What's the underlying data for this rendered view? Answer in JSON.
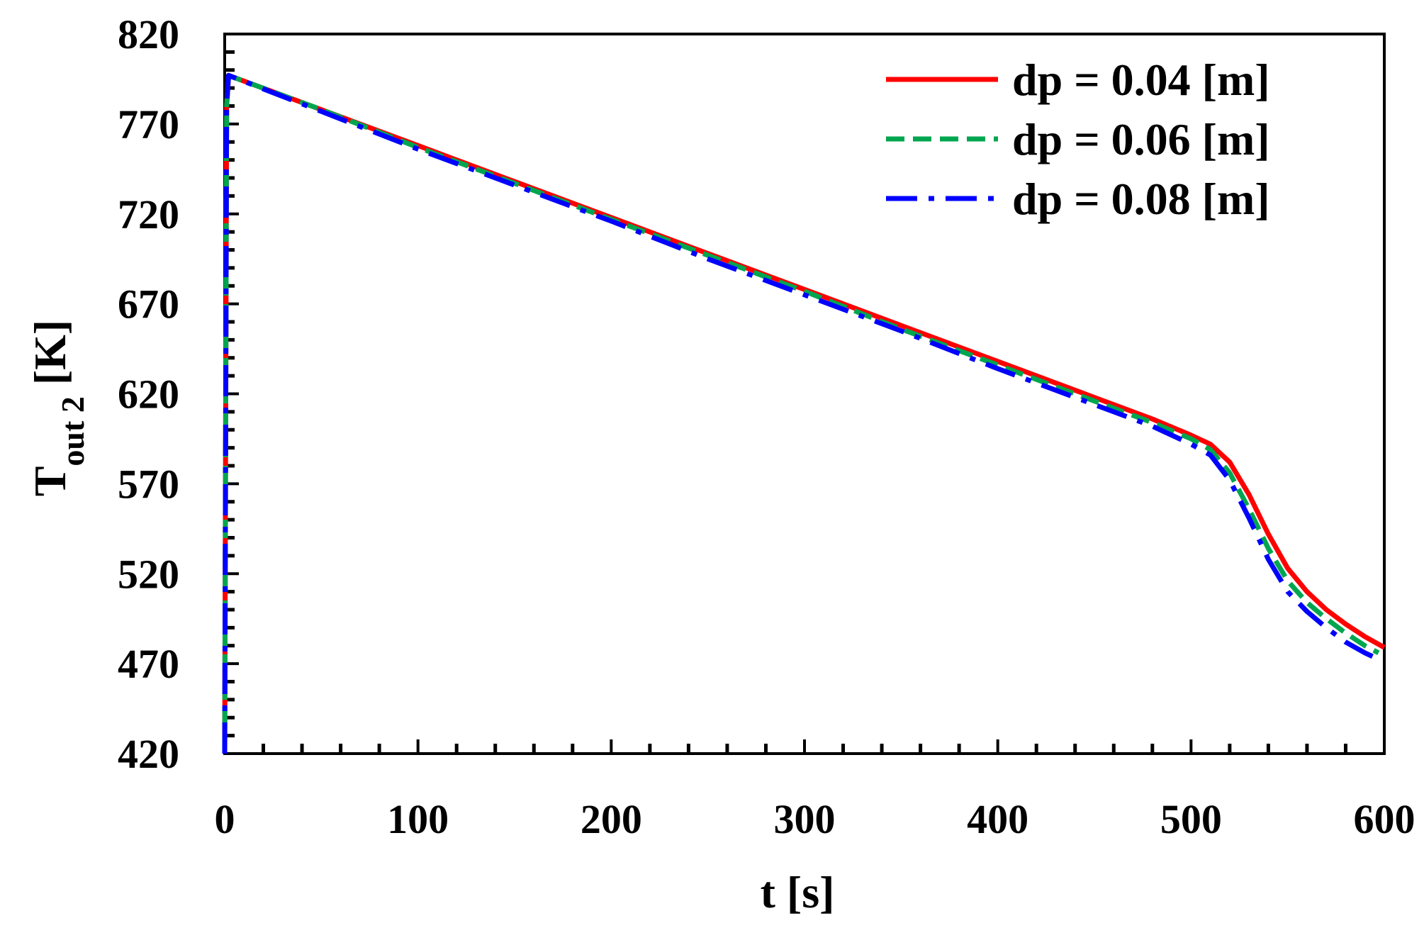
{
  "chart_data": {
    "type": "line",
    "title": "",
    "xlabel": "t [s]",
    "ylabel": {
      "main": "T",
      "subscript": "out 2",
      "unit": " [K]"
    },
    "xlim": [
      0,
      600
    ],
    "ylim": [
      420,
      820
    ],
    "xticks": [
      0,
      100,
      200,
      300,
      400,
      500,
      600
    ],
    "yticks": [
      420,
      470,
      520,
      570,
      620,
      670,
      720,
      770,
      820
    ],
    "grid": false,
    "legend_position": "top-right",
    "series": [
      {
        "name": "dp = 0.04 [m]",
        "color": "#ff0000",
        "style": "solid",
        "x": [
          0,
          1,
          2,
          50,
          100,
          150,
          200,
          250,
          300,
          350,
          400,
          450,
          480,
          500,
          510,
          520,
          530,
          540,
          550,
          560,
          570,
          580,
          590,
          600
        ],
        "y": [
          420,
          780,
          797,
          778,
          758,
          738,
          718,
          698,
          678,
          658,
          638,
          618,
          606,
          597,
          592,
          582,
          564,
          542,
          523,
          510,
          500,
          492,
          485,
          479
        ]
      },
      {
        "name": "dp = 0.06 [m]",
        "color": "#00a64f",
        "style": "dashed",
        "x": [
          0,
          1,
          2,
          50,
          100,
          150,
          200,
          250,
          300,
          350,
          400,
          450,
          480,
          500,
          510,
          520,
          530,
          540,
          550,
          560,
          570,
          580,
          590,
          597
        ],
        "y": [
          420,
          780,
          797,
          778,
          757,
          737,
          717,
          697,
          677,
          656,
          636,
          616,
          604,
          595,
          589,
          576,
          556,
          534,
          516,
          504,
          495,
          487,
          480,
          476
        ]
      },
      {
        "name": "dp = 0.08 [m]",
        "color": "#0000ff",
        "style": "dash-dot",
        "x": [
          0,
          1,
          2,
          50,
          100,
          150,
          200,
          250,
          300,
          350,
          400,
          450,
          480,
          500,
          510,
          520,
          530,
          540,
          550,
          560,
          570,
          580,
          590,
          594
        ],
        "y": [
          420,
          780,
          797,
          777,
          756,
          736,
          716,
          695,
          675,
          655,
          634,
          614,
          602,
          592,
          586,
          572,
          551,
          528,
          510,
          499,
          490,
          482,
          476,
          474
        ]
      }
    ]
  }
}
